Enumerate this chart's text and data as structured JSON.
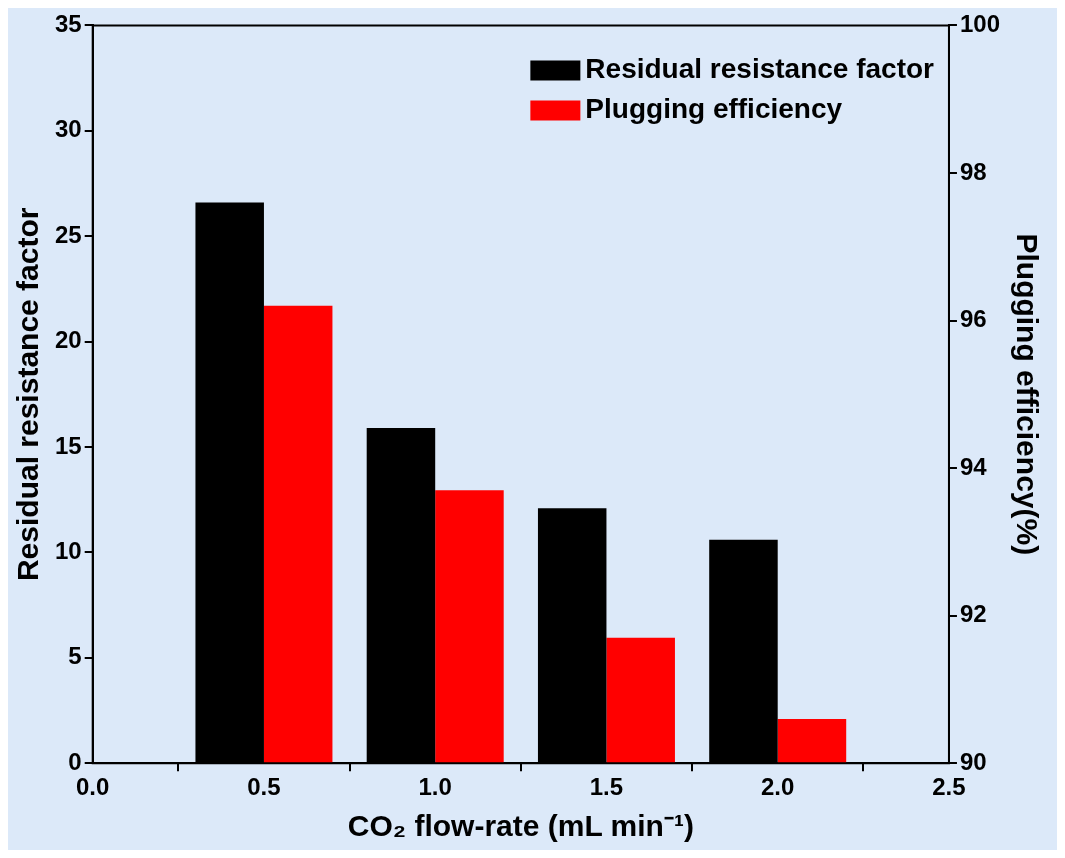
{
  "chart_data": {
    "type": "bar",
    "xlabel": "CO₂ flow-rate (mL min⁻¹)",
    "ylabel": "Residual resistance factor",
    "y2label": "Plugging efficiency(%)",
    "x": [
      0.5,
      1.0,
      1.5,
      2.0
    ],
    "series": [
      {
        "name": "Residual resistance factor",
        "color": "#000000",
        "values": [
          26.6,
          15.9,
          12.1,
          10.6
        ]
      },
      {
        "name": "Plugging efficiency",
        "color": "#ff0000",
        "values": [
          96.2,
          93.7,
          91.7,
          90.6
        ],
        "axis": "y2"
      }
    ],
    "xlim": [
      0,
      2.5
    ],
    "xticks": [
      {
        "value": 0,
        "label": "0.0"
      },
      {
        "value": 0.5,
        "label": "0.5"
      },
      {
        "value": 1,
        "label": "1.0"
      },
      {
        "value": 1.5,
        "label": "1.5"
      },
      {
        "value": 2,
        "label": "2.0"
      },
      {
        "value": 2.5,
        "label": "2.5"
      }
    ],
    "ylim": [
      0,
      35
    ],
    "yticks": [
      0,
      5,
      10,
      15,
      20,
      25,
      30,
      35
    ],
    "y2lim": [
      90,
      100
    ],
    "y2ticks": [
      90,
      92,
      94,
      96,
      98,
      100
    ],
    "grid": false,
    "legend": "top right"
  }
}
